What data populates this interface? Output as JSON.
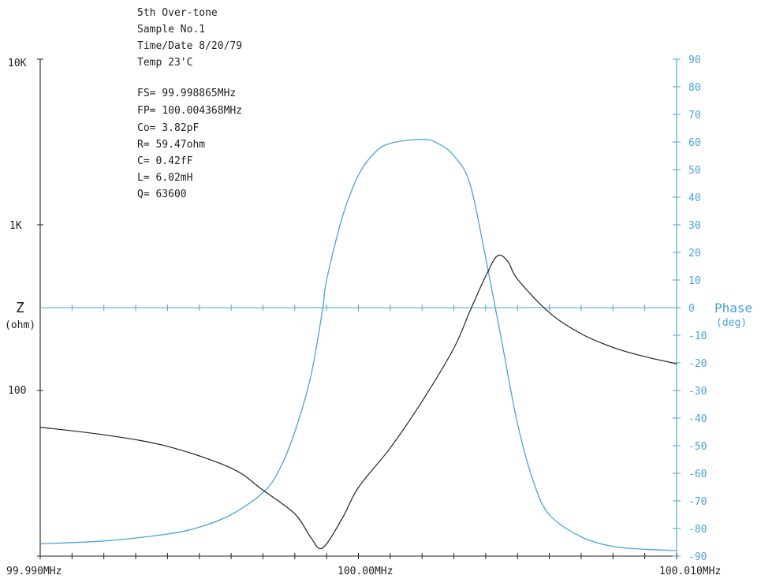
{
  "chart_data": {
    "type": "line",
    "annotations": [
      "5th Over-tone",
      "Sample No.1",
      "Time/Date 8/20/79",
      "Temp 23'C"
    ],
    "parameters": [
      "FS= 99.998865MHz",
      "FP= 100.004368MHz",
      "Co= 3.82pF",
      "R= 59.47ohm",
      "C= 0.42fF",
      "L= 6.02mH",
      "Q= 63600"
    ],
    "x_axis": {
      "ticks": [
        "99.990MHz",
        "100.00MHz",
        "100.010MHz"
      ],
      "range": [
        99.99,
        100.01
      ],
      "minor_tick_count": 20
    },
    "y_left": {
      "label": "Z",
      "unit": "(ohm)",
      "scale": "log",
      "range": [
        10,
        10000
      ],
      "ticks": [
        "10K",
        "1K",
        "100"
      ]
    },
    "y_right": {
      "label": "Phase",
      "unit": "(deg)",
      "range": [
        -90,
        90
      ],
      "ticks": [
        "90",
        "80",
        "70",
        "60",
        "50",
        "40",
        "30",
        "20",
        "10",
        "0",
        "-10",
        "-20",
        "-30",
        "-40",
        "-50",
        "-60",
        "-70",
        "-80",
        "-90"
      ]
    },
    "colors": {
      "impedance": "#222222",
      "phase": "#4aa3d8"
    },
    "series": [
      {
        "axis": "left",
        "color": "#222222",
        "x": [
          99.99,
          99.992,
          99.994,
          99.996,
          99.997,
          99.998,
          99.9985,
          99.99887,
          99.9995,
          100.0,
          100.001,
          100.002,
          100.003,
          100.0035,
          100.004,
          100.00437,
          100.0047,
          100.005,
          100.006,
          100.007,
          100.008,
          100.009,
          100.01
        ],
        "y": [
          60,
          54,
          46,
          34,
          25,
          18,
          13,
          11.2,
          17,
          26,
          45,
          86,
          180,
          300,
          490,
          650,
          600,
          470,
          295,
          220,
          182,
          160,
          145
        ]
      },
      {
        "axis": "right",
        "color": "#4aa3d8",
        "x": [
          99.99,
          99.992,
          99.994,
          99.995,
          99.996,
          99.997,
          99.9975,
          99.998,
          99.9985,
          99.99887,
          99.999,
          99.9995,
          100.0,
          100.0005,
          100.001,
          100.002,
          100.0025,
          100.003,
          100.0035,
          100.004,
          100.0045,
          100.005,
          100.0055,
          100.006,
          100.007,
          100.008,
          100.009,
          100.01
        ],
        "y": [
          -85.5,
          -84.5,
          -82,
          -79.5,
          -75,
          -67,
          -59,
          -45,
          -25,
          -1,
          10,
          33,
          48,
          56,
          59.5,
          61,
          59.5,
          55,
          45,
          18,
          -12,
          -42,
          -63,
          -75,
          -83,
          -86.5,
          -87.5,
          -88
        ]
      }
    ]
  }
}
